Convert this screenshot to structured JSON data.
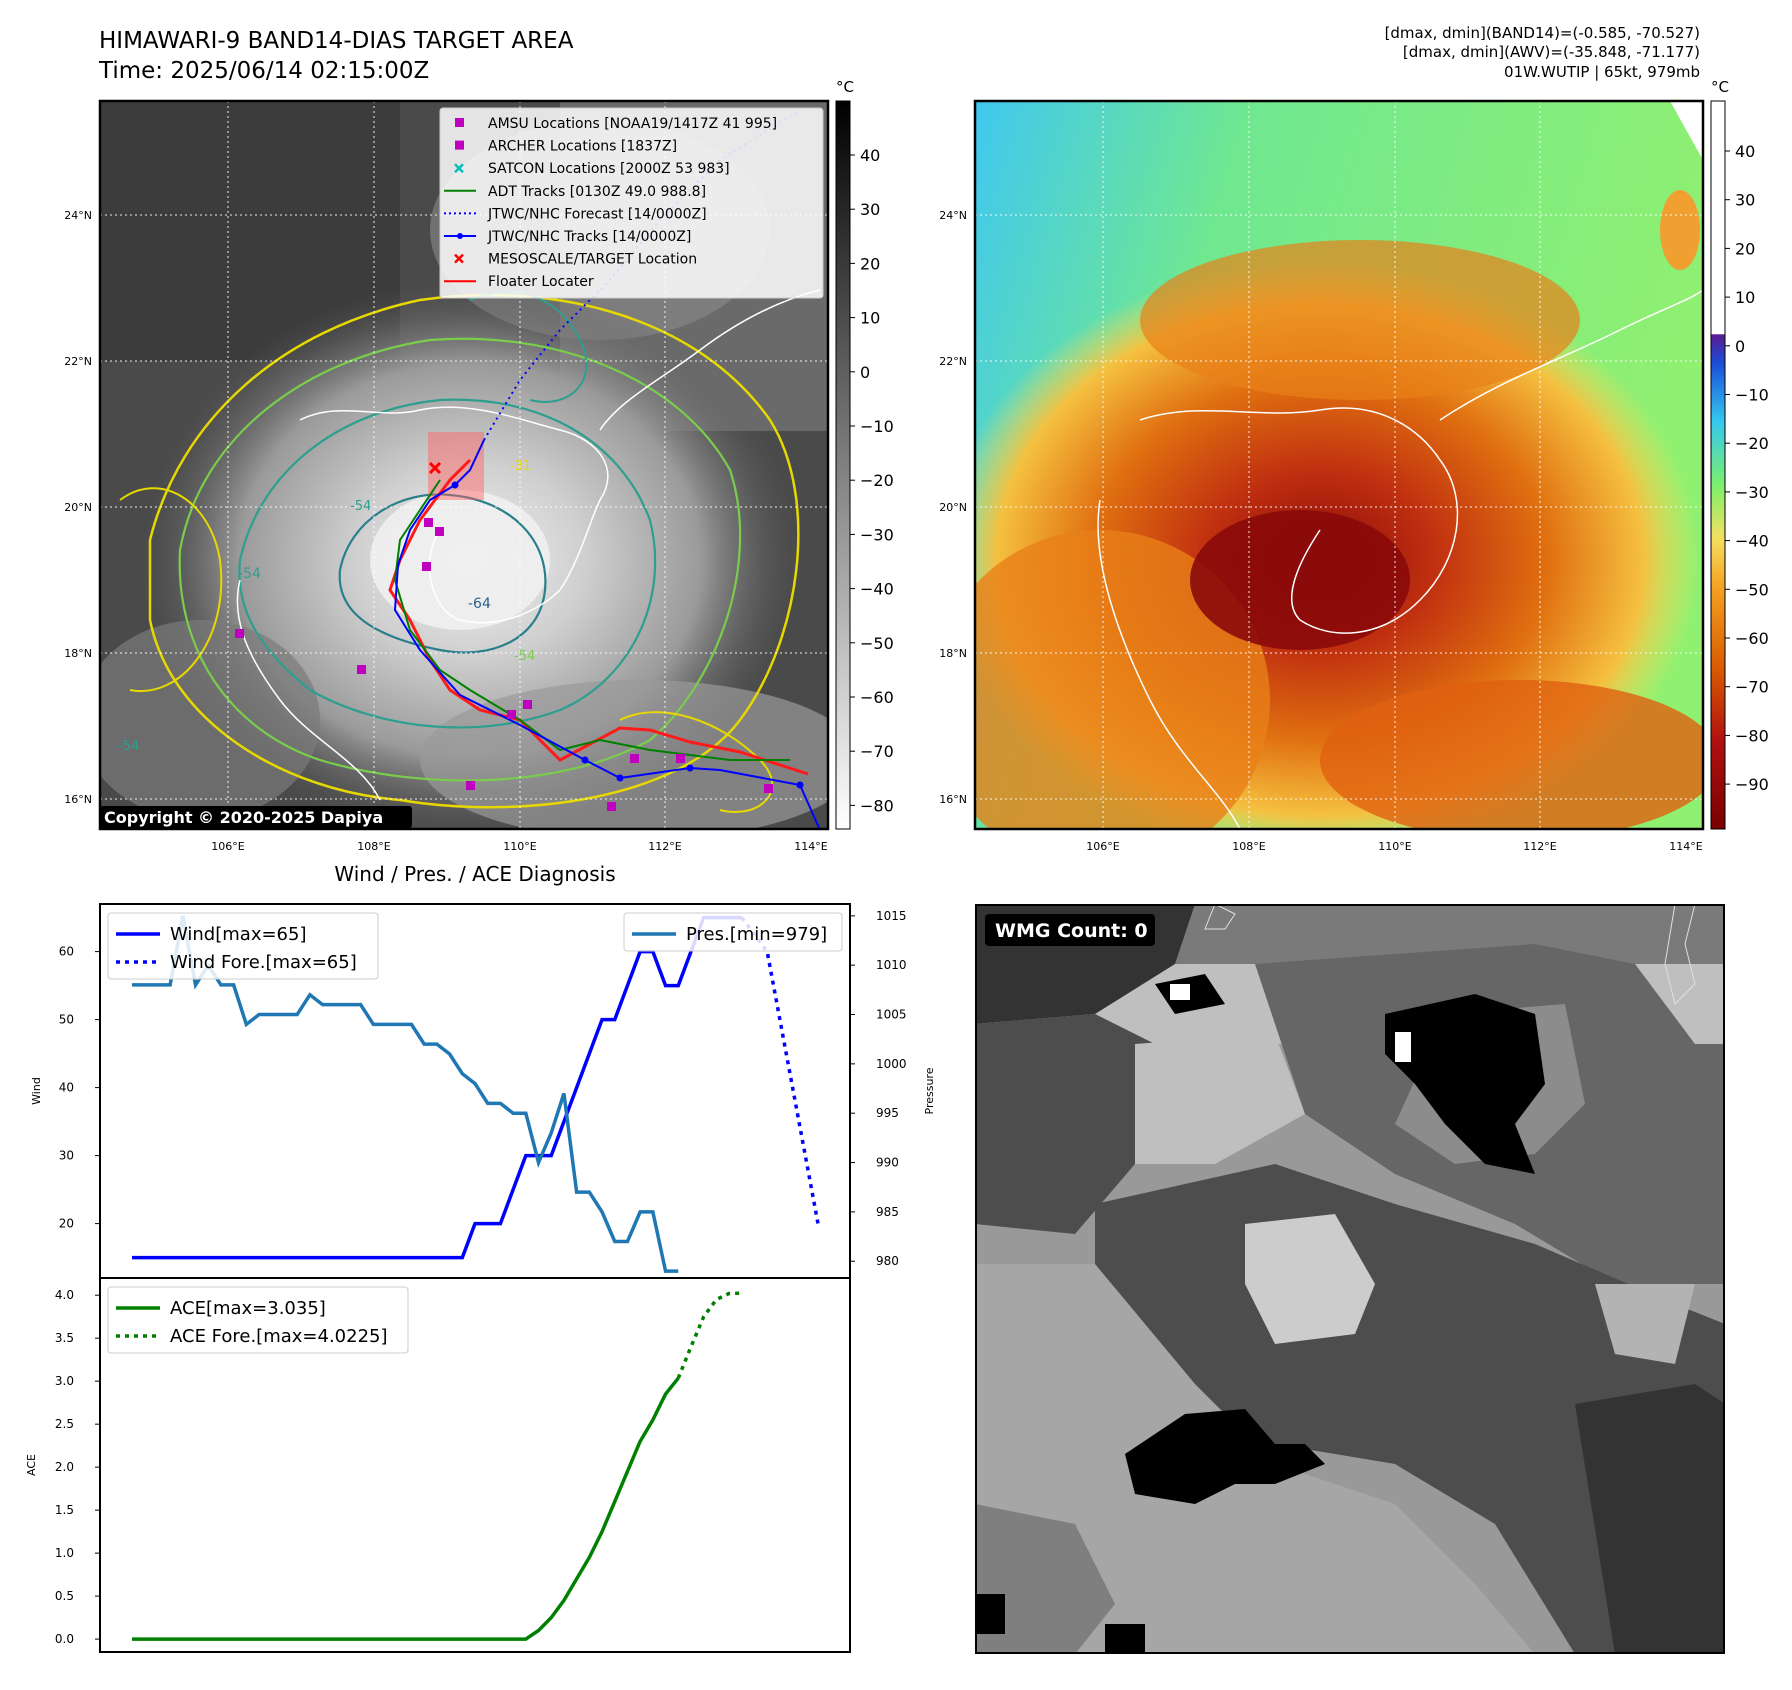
{
  "header": {
    "title_line1": "HIMAWARI-9 BAND14-DIAS TARGET AREA",
    "title_line2": "Time: 2025/06/14 02:15:00Z",
    "info_line1": "[dmax, dmin](BAND14)=(-0.585, -70.527)",
    "info_line2": "[dmax, dmin](AWV)=(-35.848, -71.177)",
    "info_line3": "01W.WUTIP | 65kt, 979mb"
  },
  "map": {
    "lon_ticks": [
      "106°E",
      "108°E",
      "110°E",
      "112°E",
      "114°E"
    ],
    "lat_ticks": [
      "24°N",
      "22°N",
      "20°N",
      "18°N",
      "16°N"
    ],
    "copyright": "Copyright © 2020-2025 Dapiya",
    "contour_labels": [
      "-54",
      "-64",
      "-31",
      "-54",
      "-54",
      "-54"
    ],
    "legend": [
      {
        "label": "AMSU Locations [NOAA19/1417Z 41 995]",
        "color": "#bf00bf",
        "marker": "square"
      },
      {
        "label": "ARCHER Locations [1837Z]",
        "color": "#bf00bf",
        "marker": "square"
      },
      {
        "label": "SATCON Locations [2000Z 53 983]",
        "color": "#00bfbf",
        "marker": "x"
      },
      {
        "label": "ADT Tracks [0130Z 49.0 988.8]",
        "color": "#008000",
        "marker": "line"
      },
      {
        "label": "JTWC/NHC Forecast [14/0000Z]",
        "color": "#0000ff",
        "marker": "dotted"
      },
      {
        "label": "JTWC/NHC Tracks [14/0000Z]",
        "color": "#0000ff",
        "marker": "line-dot"
      },
      {
        "label": "MESOSCALE/TARGET Location",
        "color": "#ff0000",
        "marker": "x"
      },
      {
        "label": "Floater Locater",
        "color": "#ff0000",
        "marker": "line"
      }
    ]
  },
  "colorbar_gray": {
    "unit": "°C",
    "ticks": [
      "40",
      "30",
      "20",
      "10",
      "0",
      "−10",
      "−20",
      "−30",
      "−40",
      "−50",
      "−60",
      "−70",
      "−80"
    ]
  },
  "colorbar_color": {
    "unit": "°C",
    "ticks": [
      "40",
      "30",
      "20",
      "10",
      "0",
      "−10",
      "−20",
      "−30",
      "−40",
      "−50",
      "−60",
      "−70",
      "−80",
      "−90"
    ]
  },
  "wmg": {
    "label": "WMG Count: 0"
  },
  "diag_title": "Wind / Pres. / ACE Diagnosis",
  "chart_data": [
    {
      "type": "line",
      "title": "Wind / Pres. / ACE Diagnosis",
      "ylabel": "Wind",
      "y2label": "Pressure",
      "ylim": [
        12,
        67
      ],
      "y2lim": [
        978.3,
        1016.2
      ],
      "yticks": [
        "20",
        "30",
        "40",
        "50",
        "60"
      ],
      "y2ticks": [
        "980",
        "985",
        "990",
        "995",
        "1000",
        "1005",
        "1010",
        "1015"
      ],
      "series": [
        {
          "name": "Wind[max=65]",
          "style": "solid",
          "color": "#0000ff",
          "x": [
            0,
            26,
            27,
            29,
            30,
            31,
            32,
            33,
            35,
            37,
            38,
            39,
            40,
            41,
            42,
            43,
            45,
            46,
            47,
            48
          ],
          "values": [
            15,
            15,
            20,
            20,
            25,
            30,
            30,
            30,
            40,
            50,
            50,
            55,
            60,
            60,
            55,
            55,
            65,
            65,
            65,
            65
          ]
        },
        {
          "name": "Wind Fore.[max=65]",
          "style": "dotted",
          "color": "#0000ff",
          "x": [
            48,
            50,
            51,
            52,
            53,
            54
          ],
          "values": [
            65,
            60,
            50,
            40,
            30,
            20
          ]
        },
        {
          "name": "Pres.[min=979]",
          "style": "solid",
          "color": "#1f77b4",
          "axis": "right",
          "x": [
            0,
            2,
            3,
            4,
            5,
            6,
            7,
            8,
            9,
            10,
            11,
            12,
            13,
            14,
            15,
            16,
            17,
            18,
            19,
            20,
            21,
            22,
            23,
            24,
            25,
            26,
            27,
            28,
            29,
            30,
            31,
            32,
            33,
            34,
            35,
            36,
            37,
            38,
            39,
            40,
            41,
            42,
            43
          ],
          "values": [
            1008,
            1008,
            1008,
            1015,
            1008,
            1010,
            1008,
            1008,
            1004,
            1005,
            1005,
            1005,
            1005,
            1007,
            1006,
            1006,
            1006,
            1006,
            1004,
            1004,
            1004,
            1004,
            1002,
            1002,
            1001,
            999,
            998,
            996,
            996,
            995,
            995,
            990,
            993,
            997,
            987,
            987,
            985,
            982,
            982,
            985,
            985,
            979,
            979
          ]
        }
      ]
    },
    {
      "type": "line",
      "ylabel": "ACE",
      "ylim": [
        -0.15,
        4.2
      ],
      "yticks": [
        "0.0",
        "0.5",
        "1.0",
        "1.5",
        "2.0",
        "2.5",
        "3.0",
        "3.5",
        "4.0"
      ],
      "series": [
        {
          "name": "ACE[max=3.035]",
          "style": "solid",
          "color": "#008000",
          "x": [
            0,
            31,
            32,
            33,
            34,
            35,
            36,
            37,
            38,
            39,
            40,
            41,
            42,
            43
          ],
          "values": [
            0,
            0,
            0.1,
            0.25,
            0.45,
            0.7,
            0.95,
            1.25,
            1.6,
            1.95,
            2.3,
            2.55,
            2.85,
            3.035
          ]
        },
        {
          "name": "ACE Fore.[max=4.0225]",
          "style": "dotted",
          "color": "#008000",
          "x": [
            43,
            44,
            45,
            46,
            47,
            48
          ],
          "values": [
            3.035,
            3.4,
            3.75,
            3.95,
            4.02,
            4.0225
          ]
        }
      ]
    }
  ]
}
